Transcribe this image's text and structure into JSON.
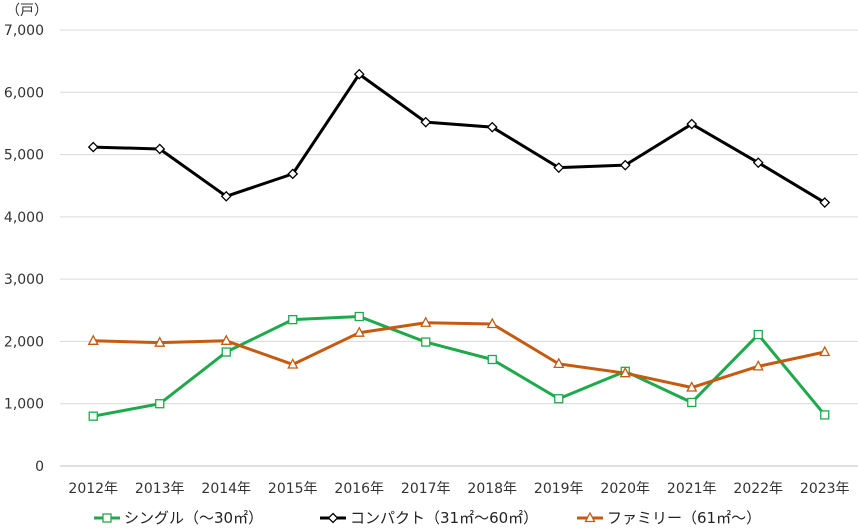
{
  "chart_data": {
    "type": "line",
    "unit_label": "（戸）",
    "categories": [
      "2012年",
      "2013年",
      "2014年",
      "2015年",
      "2016年",
      "2017年",
      "2018年",
      "2019年",
      "2020年",
      "2021年",
      "2022年",
      "2023年"
    ],
    "ylim": [
      0,
      7000
    ],
    "yticks": [
      0,
      1000,
      2000,
      3000,
      4000,
      5000,
      6000,
      7000
    ],
    "ytick_labels": [
      "0",
      "1,000",
      "2,000",
      "3,000",
      "4,000",
      "5,000",
      "6,000",
      "7,000"
    ],
    "grid": true,
    "legend_position": "bottom",
    "series": [
      {
        "name": "シングル（～30㎡）",
        "color": "#1eaa4b",
        "marker": "square",
        "values": [
          800,
          1000,
          1830,
          2350,
          2400,
          1990,
          1710,
          1080,
          1520,
          1020,
          2110,
          820
        ]
      },
      {
        "name": "コンパクト（31㎡～60㎡）",
        "color": "#000000",
        "marker": "diamond",
        "values": [
          5120,
          5090,
          4330,
          4690,
          6290,
          5520,
          5440,
          4790,
          4830,
          5490,
          4870,
          4230
        ]
      },
      {
        "name": "ファミリー（61㎡～）",
        "color": "#c55a11",
        "marker": "triangle",
        "values": [
          2010,
          1980,
          2010,
          1630,
          2140,
          2300,
          2280,
          1640,
          1490,
          1260,
          1600,
          1830
        ]
      }
    ]
  }
}
